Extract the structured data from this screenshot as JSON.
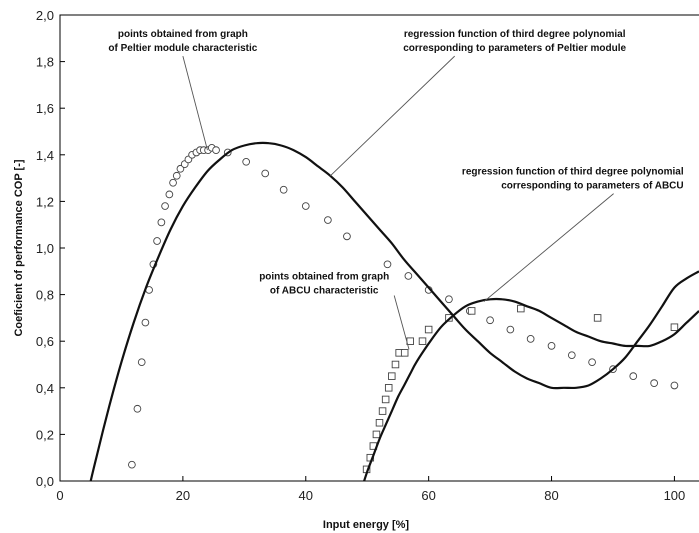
{
  "chart_data": {
    "type": "scatter",
    "xlabel": "Input energy [%]",
    "ylabel": "Coeficient of performance COP [-]",
    "xlim": [
      0,
      104
    ],
    "ylim": [
      0,
      2.0
    ],
    "x_ticks": [
      0,
      20,
      40,
      60,
      80,
      100
    ],
    "x_tick_labels": [
      "0",
      "20",
      "40",
      "60",
      "80",
      "100"
    ],
    "y_ticks": [
      0.0,
      0.2,
      0.4,
      0.6,
      0.8,
      1.0,
      1.2,
      1.4,
      1.6,
      1.8,
      2.0
    ],
    "y_tick_labels": [
      "0,0",
      "0,2",
      "0,4",
      "0,6",
      "0,8",
      "1,0",
      "1,2",
      "1,4",
      "1,6",
      "1,8",
      "2,0"
    ],
    "grid": false,
    "series": [
      {
        "kind": "points",
        "marker": "circle",
        "x": [
          11.7,
          12.6,
          13.3,
          13.9,
          14.5,
          15.2,
          15.8,
          16.5,
          17.1,
          17.8,
          18.4,
          19.0,
          19.6,
          20.3,
          20.9,
          21.5,
          22.2,
          22.8,
          23.4,
          24.1,
          24.7,
          25.4,
          27.3,
          30.3,
          33.4,
          36.4,
          40.0,
          43.6,
          46.7,
          53.3,
          56.7,
          60.0,
          63.3,
          66.7,
          70.0,
          73.3,
          76.6,
          80.0,
          83.3,
          86.6,
          90.0,
          93.3,
          96.7,
          100.0
        ],
        "y": [
          0.07,
          0.31,
          0.51,
          0.68,
          0.82,
          0.93,
          1.03,
          1.11,
          1.18,
          1.23,
          1.28,
          1.31,
          1.34,
          1.36,
          1.38,
          1.4,
          1.41,
          1.42,
          1.42,
          1.42,
          1.43,
          1.42,
          1.41,
          1.37,
          1.32,
          1.25,
          1.18,
          1.12,
          1.05,
          0.93,
          0.88,
          0.82,
          0.78,
          0.73,
          0.69,
          0.65,
          0.61,
          0.58,
          0.54,
          0.51,
          0.48,
          0.45,
          0.42,
          0.41
        ]
      },
      {
        "kind": "points",
        "marker": "square",
        "x": [
          49.9,
          50.5,
          51.0,
          51.5,
          52.0,
          52.5,
          53.0,
          53.5,
          54.0,
          54.6,
          55.2,
          56.1,
          57.0,
          59.0,
          60.0,
          63.3,
          67.0,
          75.0,
          87.5,
          100.0
        ],
        "y": [
          0.05,
          0.1,
          0.15,
          0.2,
          0.25,
          0.3,
          0.35,
          0.4,
          0.45,
          0.5,
          0.55,
          0.55,
          0.6,
          0.6,
          0.65,
          0.7,
          0.73,
          0.74,
          0.7,
          0.66
        ]
      },
      {
        "kind": "regression",
        "x": [
          5.0,
          6.0,
          8.0,
          10.0,
          12.0,
          14.0,
          16.0,
          18.0,
          20.0,
          22.0,
          24.0,
          26.0,
          28.0,
          30.0,
          32.0,
          34.0,
          36.0,
          38.0,
          40.0,
          42.0,
          44.0,
          46.0,
          48.0,
          50.0,
          52.0,
          54.0,
          56.0,
          58.0,
          60.0,
          62.0,
          64.0,
          66.0,
          68.0,
          70.0,
          72.0,
          74.0,
          76.0,
          78.0,
          80.0,
          82.0,
          84.0,
          86.0,
          88.0,
          90.0,
          92.0,
          94.0,
          96.0,
          98.0,
          100.0,
          102.0,
          104.0
        ],
        "y": [
          0.0,
          0.11,
          0.32,
          0.51,
          0.68,
          0.83,
          0.96,
          1.08,
          1.18,
          1.26,
          1.33,
          1.38,
          1.42,
          1.44,
          1.45,
          1.45,
          1.44,
          1.42,
          1.39,
          1.35,
          1.31,
          1.26,
          1.2,
          1.14,
          1.08,
          1.02,
          0.95,
          0.89,
          0.83,
          0.77,
          0.71,
          0.65,
          0.6,
          0.55,
          0.51,
          0.47,
          0.44,
          0.42,
          0.4,
          0.4,
          0.4,
          0.41,
          0.44,
          0.48,
          0.53,
          0.6,
          0.67,
          0.75,
          0.83,
          0.87,
          0.9
        ]
      },
      {
        "kind": "regression",
        "x": [
          49.5,
          50.0,
          51.0,
          52.0,
          53.0,
          54.0,
          55.0,
          56.0,
          57.0,
          58.0,
          60.0,
          62.0,
          64.0,
          66.0,
          68.0,
          70.0,
          72.0,
          74.0,
          76.0,
          78.0,
          80.0,
          82.0,
          84.0,
          86.0,
          88.0,
          90.0,
          92.0,
          94.0,
          96.0,
          98.0,
          100.0,
          102.0,
          104.0
        ],
        "y": [
          0.0,
          0.04,
          0.11,
          0.18,
          0.24,
          0.3,
          0.36,
          0.41,
          0.46,
          0.51,
          0.59,
          0.66,
          0.71,
          0.75,
          0.77,
          0.78,
          0.78,
          0.77,
          0.75,
          0.73,
          0.7,
          0.67,
          0.64,
          0.62,
          0.6,
          0.59,
          0.58,
          0.58,
          0.58,
          0.6,
          0.63,
          0.68,
          0.73
        ]
      }
    ],
    "annotations": [
      {
        "lines": [
          "points obtained from   graph",
          "of Peltier module characteristic"
        ],
        "anchor": "middle",
        "x": 20.0,
        "y": 1.905,
        "target_x": 24.0,
        "target_y": 1.42
      },
      {
        "lines": [
          "regression function of third degree polynomial",
          "corresponding to parameters of Peltier module"
        ],
        "anchor": "middle",
        "x": 74.0,
        "y": 1.905,
        "target_x": 44.0,
        "target_y": 1.31
      },
      {
        "lines": [
          "regression function of third degree polynomial",
          "corresponding to parameters of ABCU"
        ],
        "anchor": "end",
        "x": 101.5,
        "y": 1.315,
        "target_x": 69.0,
        "target_y": 0.77
      },
      {
        "lines": [
          "points obtained from   graph",
          "of ABCU characteristic"
        ],
        "anchor": "middle",
        "x": 43.0,
        "y": 0.865,
        "target_x": 56.8,
        "target_y": 0.565
      }
    ]
  }
}
